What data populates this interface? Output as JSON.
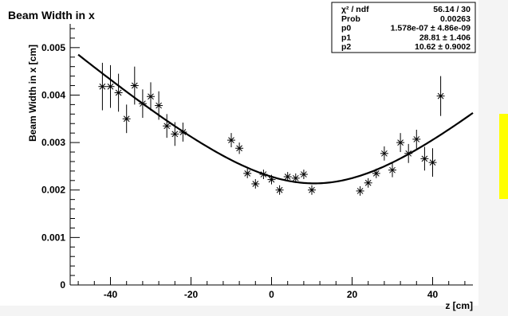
{
  "colors": {
    "canvas": "#ffffff",
    "background": "#f4f4f4",
    "yellow_tag": "#ffff00",
    "ink": "#000000"
  },
  "chart_data": {
    "type": "scatter",
    "title": "Beam Width in x",
    "xlabel": "z [cm]",
    "ylabel": "Beam Width in x [cm]",
    "xlim": [
      -50,
      50
    ],
    "ylim": [
      0,
      0.0055
    ],
    "x_ticks": [
      -40,
      -20,
      0,
      20,
      40
    ],
    "x_tick_labels": [
      "-40",
      "-20",
      "0",
      "20",
      "40"
    ],
    "y_ticks": [
      0,
      0.001,
      0.002,
      0.003,
      0.004,
      0.005
    ],
    "y_tick_labels": [
      "0",
      "0.001",
      "0.002",
      "0.003",
      "0.004",
      "0.005"
    ],
    "series": [
      {
        "marker": "star",
        "x": [
          -42,
          -40,
          -38,
          -36,
          -34,
          -32,
          -30,
          -28,
          -26,
          -24,
          -22,
          -10,
          -8,
          -6,
          -4,
          -2,
          0,
          2,
          4,
          6,
          8,
          10,
          22,
          24,
          26,
          28,
          30,
          32,
          34,
          36,
          38,
          40,
          42
        ],
        "y": [
          0.00418,
          0.00418,
          0.00405,
          0.0035,
          0.0042,
          0.00382,
          0.00397,
          0.00378,
          0.00335,
          0.00318,
          0.00322,
          0.00305,
          0.00288,
          0.00235,
          0.00213,
          0.00233,
          0.00222,
          0.002,
          0.00228,
          0.00225,
          0.00233,
          0.002,
          0.00198,
          0.00215,
          0.00235,
          0.00277,
          0.00242,
          0.003,
          0.00277,
          0.00307,
          0.00266,
          0.00258,
          0.00398
        ],
        "yerr": [
          0.0005,
          0.00045,
          0.0004,
          0.0003,
          0.0004,
          0.0003,
          0.0003,
          0.0003,
          0.00025,
          0.00025,
          0.0002,
          0.00015,
          0.00012,
          0.0001,
          0.0001,
          0.0001,
          0.0001,
          0.0001,
          0.0001,
          0.0001,
          0.0001,
          0.0001,
          0.0001,
          0.0001,
          0.0001,
          0.00015,
          0.00015,
          0.0002,
          0.0002,
          0.0002,
          0.00025,
          0.0003,
          0.00042
        ]
      }
    ],
    "fit": {
      "function": "p0 * (1 + ((z - p2) / p1)^2)",
      "p0": 1.578e-07,
      "p1": 28.81,
      "p2": 10.62
    },
    "stats_box": {
      "rows": [
        {
          "label": "χ² / ndf",
          "value": "56.14 / 30"
        },
        {
          "label": "Prob",
          "value": "0.00263"
        },
        {
          "label": "p0",
          "value": "1.578e-07 ± 4.86e-09"
        },
        {
          "label": "p1",
          "value": "28.81 ± 1.406"
        },
        {
          "label": "p2",
          "value": "10.62 ± 0.9002"
        }
      ]
    }
  }
}
